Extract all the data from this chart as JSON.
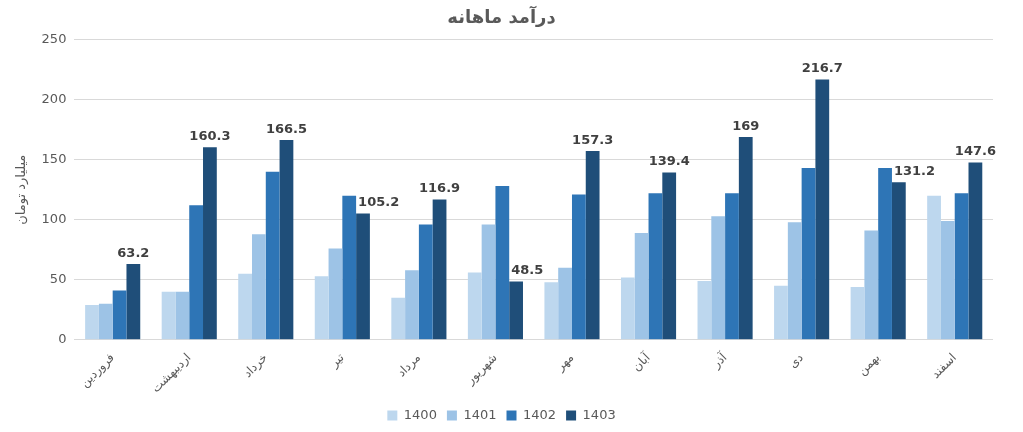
{
  "chart_data": {
    "type": "bar",
    "title": "درآمد ماهانه",
    "ylabel": "میلیارد تومان",
    "categories": [
      "فروردین",
      "اردیبهشت",
      "خرداد",
      "تیر",
      "مرداد",
      "شهریور",
      "مهر",
      "آبان",
      "آذر",
      "دی",
      "بهمن",
      "اسفند"
    ],
    "series": [
      {
        "name": "1400",
        "color": "#bdd7ee",
        "values": [
          29,
          40,
          55,
          53,
          35,
          56,
          48,
          52,
          49,
          45,
          44,
          120
        ]
      },
      {
        "name": "1401",
        "color": "#9dc3e6",
        "values": [
          30,
          40,
          88,
          76,
          58,
          96,
          60,
          89,
          103,
          98,
          91,
          99
        ]
      },
      {
        "name": "1402",
        "color": "#2e75b6",
        "values": [
          41,
          112,
          140,
          120,
          96,
          128,
          121,
          122,
          122,
          143,
          143,
          122
        ]
      },
      {
        "name": "1403",
        "color": "#1f4e79",
        "values": [
          63.2,
          160.3,
          166.5,
          105.2,
          116.9,
          48.5,
          157.3,
          139.4,
          169,
          216.7,
          131.2,
          147.6
        ],
        "value_labels": [
          "63.2",
          "160.3",
          "166.5",
          "105.2",
          "116.9",
          "48.5",
          "157.3",
          "139.4",
          "169",
          "216.7",
          "131.2",
          "147.6"
        ]
      }
    ],
    "ylim": [
      0,
      250
    ],
    "yticks": [
      0,
      50,
      100,
      150,
      200,
      250
    ],
    "grid": "y",
    "legend": "bottom"
  }
}
